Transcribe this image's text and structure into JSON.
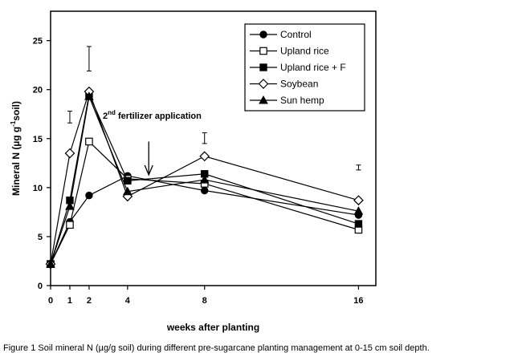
{
  "caption": {
    "label": "Figure 1",
    "text": "Soil mineral N (µg/g soil) during different pre-sugarcane planting management at 0-15 cm soil depth."
  },
  "chart_data": {
    "type": "line",
    "title": "",
    "xlabel": "weeks after planting",
    "ylabel_main": "Mineral N (µg g",
    "ylabel_sup": "-1",
    "ylabel_end": "soil)",
    "x": [
      0,
      1,
      2,
      4,
      8,
      16
    ],
    "x_ticks": [
      0,
      1,
      2,
      4,
      8,
      16
    ],
    "y_ticks": [
      0,
      5,
      10,
      15,
      20,
      25
    ],
    "ylim": [
      0,
      28
    ],
    "grid": false,
    "legend_position": "top-right",
    "series": [
      {
        "name": "Control",
        "marker": "circle-filled",
        "values": [
          2.2,
          6.5,
          9.2,
          11.2,
          9.7,
          7.2
        ]
      },
      {
        "name": "Upland rice",
        "marker": "square-open",
        "values": [
          2.2,
          6.2,
          14.7,
          10.9,
          10.4,
          5.7
        ]
      },
      {
        "name": "Upland rice + F",
        "marker": "square-filled",
        "values": [
          2.2,
          8.7,
          19.5,
          10.7,
          11.4,
          6.3
        ]
      },
      {
        "name": "Soybean",
        "marker": "diamond-open",
        "values": [
          2.2,
          13.5,
          19.8,
          9.1,
          13.2,
          8.7
        ]
      },
      {
        "name": "Sun hemp",
        "marker": "triangle-filled",
        "values": [
          2.2,
          8.1,
          19.3,
          9.6,
          10.8,
          7.6
        ]
      }
    ],
    "error_bars": [
      {
        "x": 1,
        "low": 16.6,
        "high": 17.8
      },
      {
        "x": 2,
        "low": 21.9,
        "high": 24.4
      },
      {
        "x": 8,
        "low": 14.5,
        "high": 15.6
      },
      {
        "x": 16,
        "low": 11.8,
        "high": 12.3
      }
    ],
    "annotation": {
      "prefix": "2",
      "sup": "nd",
      "text": " fertilizer application",
      "arrow_x": 5.1,
      "arrow_from_y": 14.7,
      "arrow_to_y": 11.3
    }
  }
}
